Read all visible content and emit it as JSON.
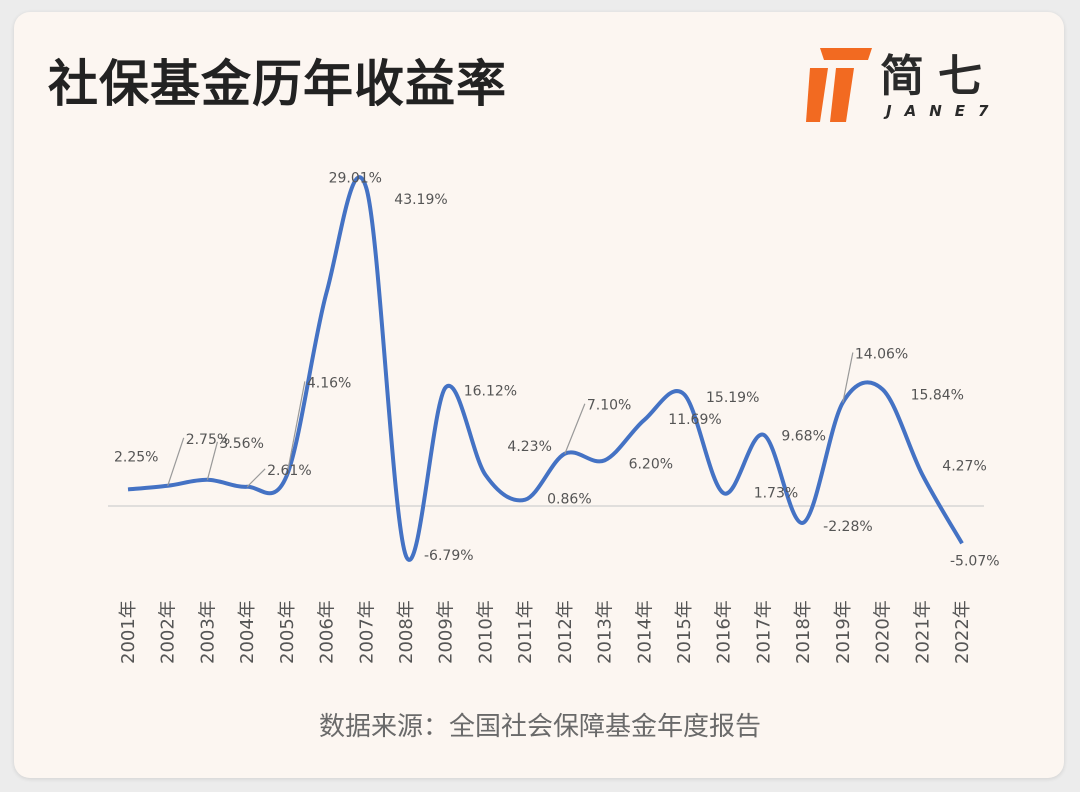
{
  "header": {
    "title": "社保基金历年收益率"
  },
  "logo": {
    "name_cn": "简七",
    "name_en": "JANE7",
    "accent": "#f26a21"
  },
  "footer": {
    "source": "数据来源：全国社会保障基金年度报告"
  },
  "colors": {
    "line": "#4472c4",
    "label": "#555555",
    "baseline": "#cfcfcf",
    "leader": "#999999"
  },
  "chart_data": {
    "type": "line",
    "smooth": true,
    "categories": [
      "2001年",
      "2002年",
      "2003年",
      "2004年",
      "2005年",
      "2006年",
      "2007年",
      "2008年",
      "2009年",
      "2010年",
      "2011年",
      "2012年",
      "2013年",
      "2014年",
      "2015年",
      "2016年",
      "2017年",
      "2018年",
      "2019年",
      "2020年",
      "2021年",
      "2022年"
    ],
    "series": [
      {
        "values": [
          2.25,
          2.75,
          3.56,
          2.61,
          4.16,
          29.01,
          43.19,
          -6.79,
          16.12,
          4.23,
          0.86,
          7.1,
          6.2,
          11.69,
          15.19,
          1.73,
          9.68,
          -2.28,
          14.06,
          15.84,
          4.27,
          -5.07
        ],
        "labels": [
          "2.25%",
          "2.75%",
          "3.56%",
          "2.61%",
          "4.16%",
          "29.01%",
          "43.19%",
          "-6.79%",
          "16.12%",
          "4.23%",
          "0.86%",
          "7.10%",
          "6.20%",
          "11.69%",
          "15.19%",
          "1.73%",
          "9.68%",
          "-2.28%",
          "14.06%",
          "15.84%",
          "4.27%",
          "-5.07%"
        ]
      }
    ],
    "ylim": [
      -7,
      43.19
    ],
    "grid": false,
    "legend": "none",
    "title": "社保基金历年收益率"
  }
}
